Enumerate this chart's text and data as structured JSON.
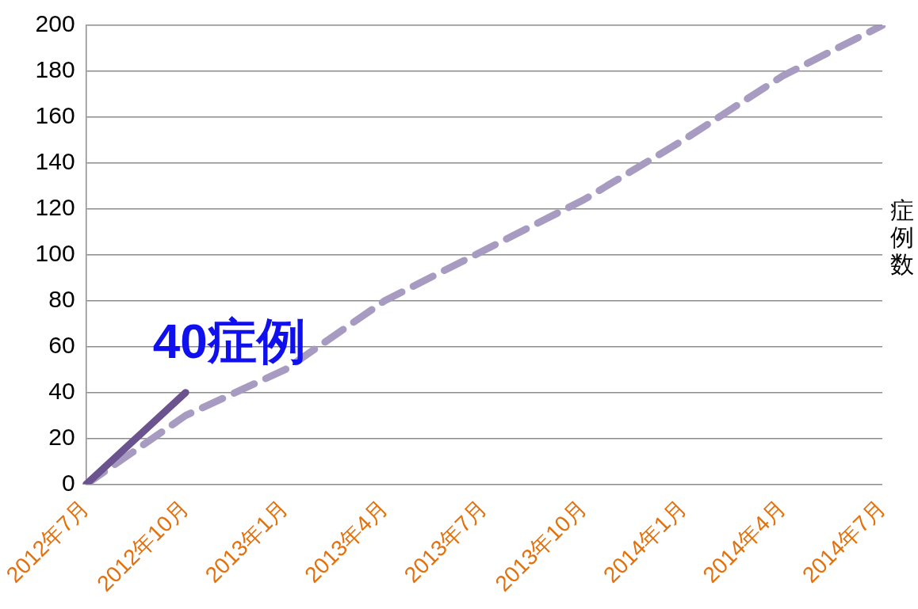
{
  "chart_data": {
    "type": "line",
    "ylabel": "症例数",
    "categories": [
      "2012年7月",
      "2012年10月",
      "2013年1月",
      "2013年4月",
      "2013年7月",
      "2013年10月",
      "2014年1月",
      "2014年4月",
      "2014年7月"
    ],
    "series": [
      {
        "color": "#6b538f",
        "line_style": "solid",
        "values": [
          0,
          40,
          null,
          null,
          null,
          null,
          null,
          null,
          null
        ]
      },
      {
        "color": "#a79bc1",
        "line_style": "dashed",
        "values": [
          0,
          30,
          50,
          80,
          102,
          124,
          150,
          178,
          200
        ]
      }
    ],
    "ylim": [
      0,
      200
    ],
    "yticks": [
      0,
      20,
      40,
      60,
      80,
      100,
      120,
      140,
      160,
      180,
      200
    ],
    "grid": "y",
    "marker": "none",
    "annotations": [
      {
        "text": "40症例",
        "x": "2012年10月",
        "y": 40
      }
    ]
  }
}
